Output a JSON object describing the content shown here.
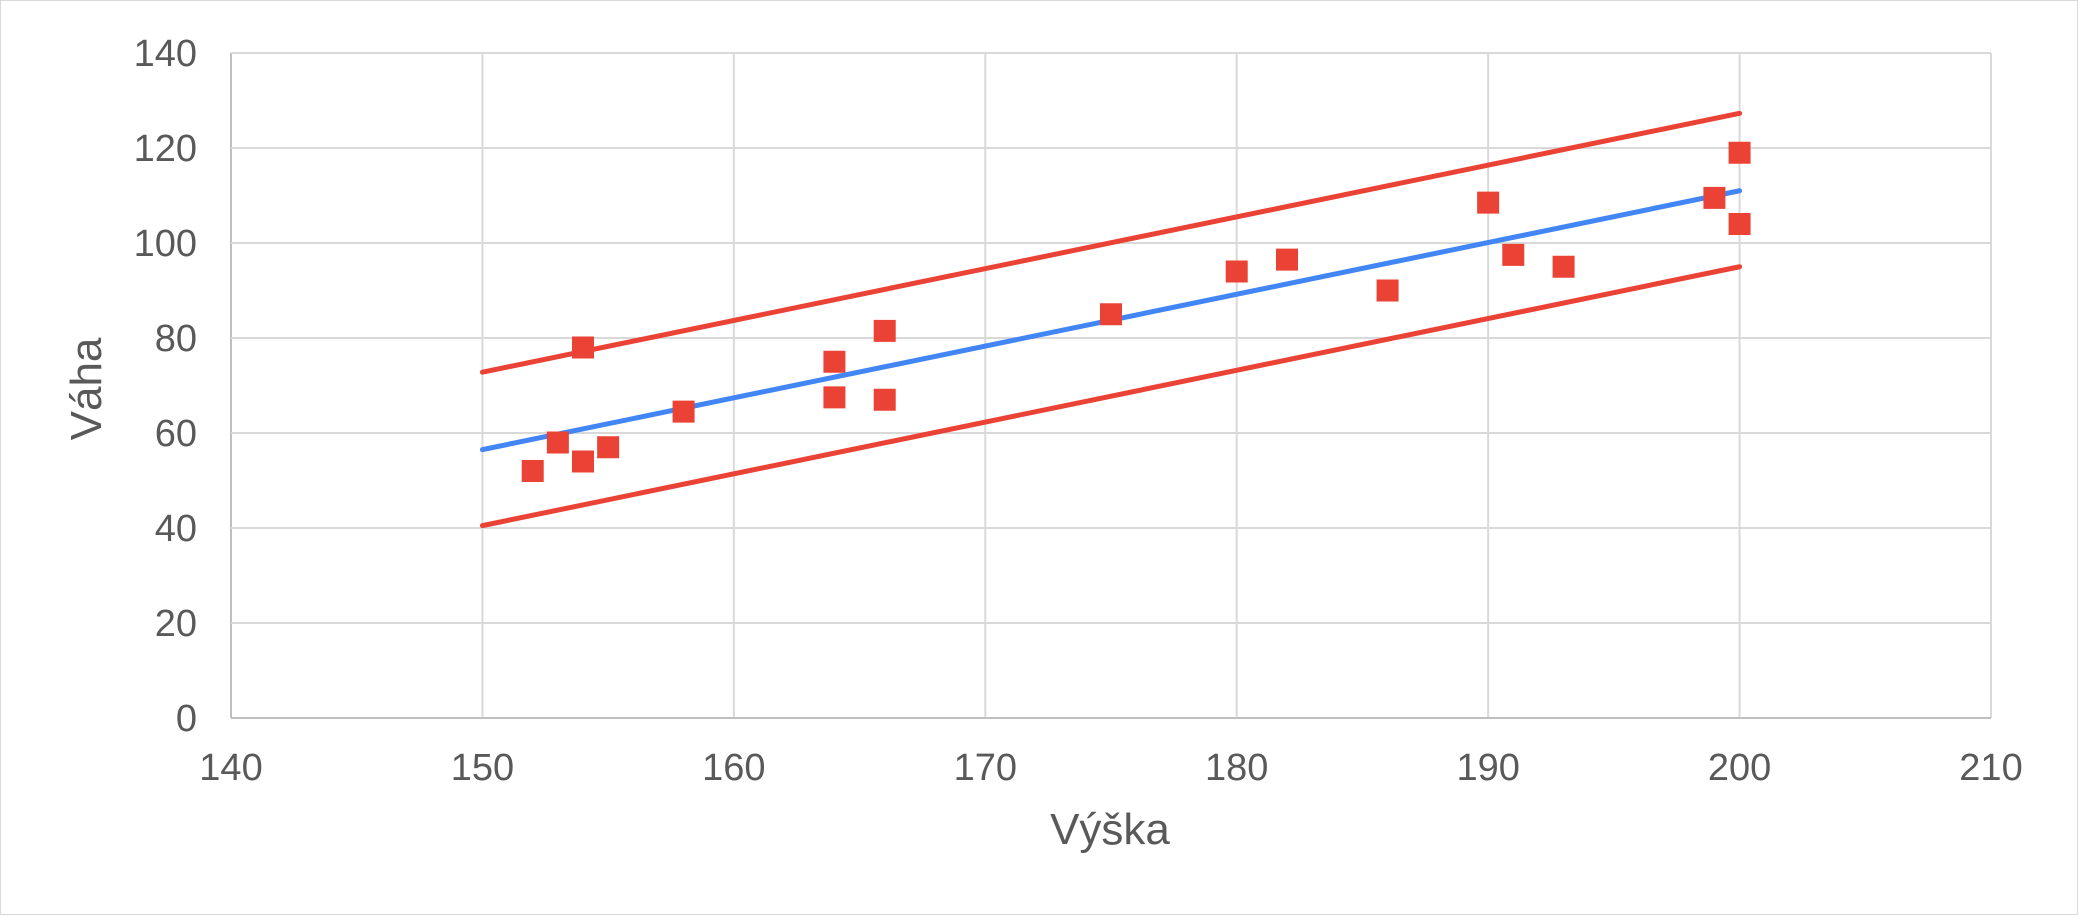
{
  "chart_data": {
    "type": "scatter",
    "xlabel": "Výška",
    "ylabel": "Váha",
    "xlim": [
      140,
      210
    ],
    "ylim": [
      0,
      140
    ],
    "x_ticks": [
      "140",
      "150",
      "160",
      "170",
      "180",
      "190",
      "200",
      "210"
    ],
    "y_ticks": [
      "0",
      "20",
      "40",
      "60",
      "80",
      "100",
      "120",
      "140"
    ],
    "grid": true,
    "legend": "none",
    "points": {
      "marker": "square",
      "color": "#ea4335",
      "x": [
        152,
        153,
        154,
        154,
        155,
        158,
        164,
        164,
        166,
        166,
        175,
        180,
        182,
        186,
        190,
        191,
        193,
        199,
        200,
        200
      ],
      "y": [
        52,
        58,
        54,
        78,
        57,
        64.5,
        75,
        67.5,
        81.5,
        67,
        85,
        94,
        96.5,
        90,
        108.5,
        97.5,
        95,
        109.5,
        119,
        104
      ]
    },
    "lines": [
      {
        "role": "regression",
        "color": "#4285f4",
        "x": [
          150,
          200
        ],
        "y": [
          56.5,
          111
        ]
      },
      {
        "role": "upper-bound",
        "color": "#ea4335",
        "x": [
          150,
          200
        ],
        "y": [
          72.8,
          127.3
        ]
      },
      {
        "role": "lower-bound",
        "color": "#ea4335",
        "x": [
          150,
          200
        ],
        "y": [
          40.5,
          95
        ]
      }
    ],
    "colors": {
      "grid": "#d9d9d9",
      "axis": "#bfbfbf",
      "text": "#595959"
    }
  }
}
